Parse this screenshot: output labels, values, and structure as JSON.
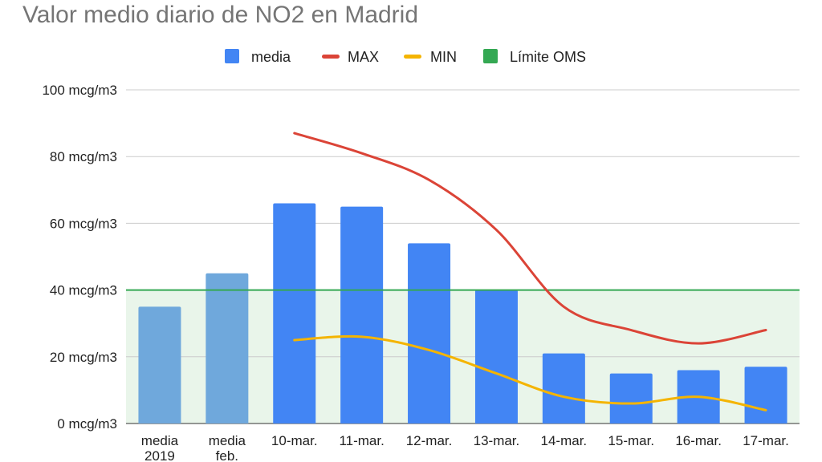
{
  "chart_data": {
    "type": "bar",
    "title": "Valor medio diario de NO2 en Madrid",
    "categories": [
      [
        "media",
        "2019"
      ],
      [
        "media",
        "feb."
      ],
      [
        "10-mar."
      ],
      [
        "11-mar."
      ],
      [
        "12-mar."
      ],
      [
        "13-mar."
      ],
      [
        "14-mar."
      ],
      [
        "15-mar."
      ],
      [
        "16-mar."
      ],
      [
        "17-mar."
      ]
    ],
    "series": [
      {
        "name": "media",
        "kind": "bar",
        "color": "#4285f4",
        "highlight_color": "#6fa8dc",
        "values": [
          35,
          45,
          66,
          65,
          54,
          40,
          21,
          15,
          16,
          17
        ]
      },
      {
        "name": "MAX",
        "kind": "line",
        "color": "#db4437",
        "values": [
          null,
          null,
          87,
          81,
          73,
          58,
          35,
          28,
          24,
          28
        ]
      },
      {
        "name": "MIN",
        "kind": "line",
        "color": "#f4b400",
        "values": [
          null,
          null,
          25,
          26,
          22,
          15,
          8,
          6,
          8,
          4
        ]
      }
    ],
    "reference_line": {
      "name": "Límite OMS",
      "value": 40,
      "color": "#34a853",
      "fill": "#e9f5ea"
    },
    "ylim": [
      0,
      100
    ],
    "yticks": [
      0,
      20,
      40,
      60,
      80,
      100
    ],
    "ytick_labels": [
      "0 mcg/m3",
      "20 mcg/m3",
      "40 mcg/m3",
      "60 mcg/m3",
      "80 mcg/m3",
      "100 mcg/m3"
    ],
    "legend_position": "top",
    "grid": true
  }
}
